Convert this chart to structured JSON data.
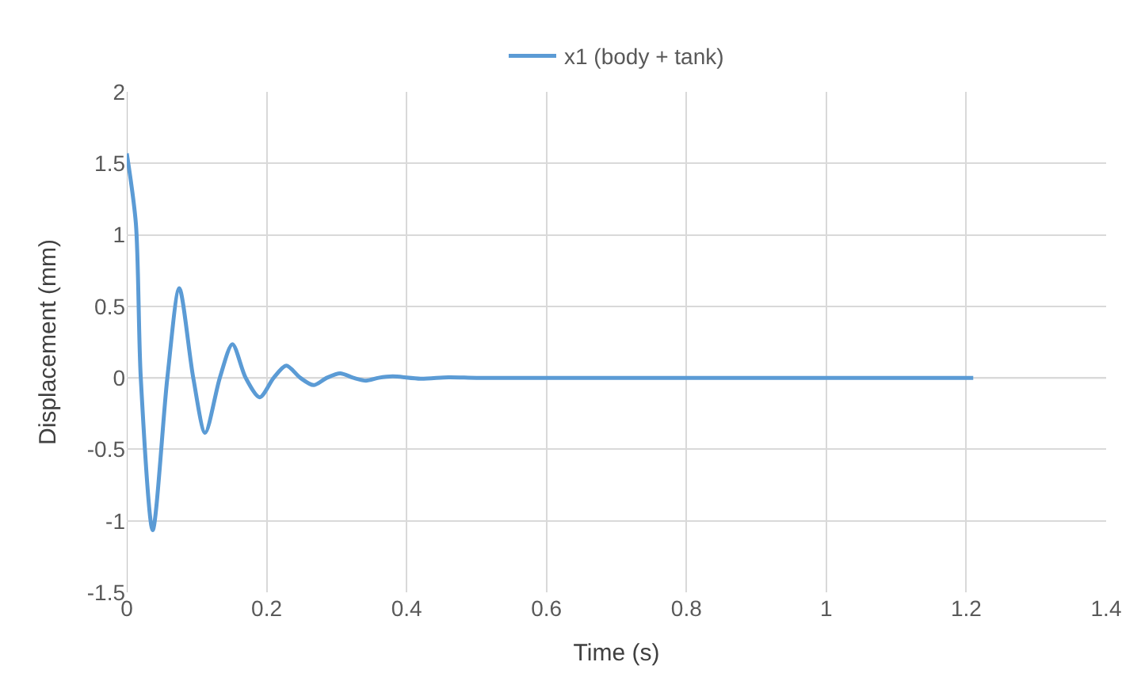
{
  "chart_data": {
    "type": "line",
    "xlabel": "Time (s)",
    "ylabel": "Displacement (mm)",
    "x": [
      0,
      0.013,
      0.02,
      0.037,
      0.058,
      0.075,
      0.095,
      0.112,
      0.133,
      0.151,
      0.17,
      0.19,
      0.21,
      0.228,
      0.248,
      0.267,
      0.286,
      0.305,
      0.324,
      0.342,
      0.36,
      0.38,
      0.42,
      0.46,
      0.5,
      0.6,
      0.8,
      1.0,
      1.21
    ],
    "series": [
      {
        "name": "x1 (body + tank)",
        "color": "#5b9bd5",
        "values": [
          1.57,
          1.08,
          0,
          -1.065,
          0,
          0.626,
          0,
          -0.384,
          0,
          0.235,
          0,
          -0.136,
          0,
          0.085,
          0,
          -0.051,
          0,
          0.031,
          0,
          -0.02,
          0,
          0.01,
          -0.006,
          0.004,
          0,
          0,
          0,
          0,
          0
        ]
      }
    ],
    "xlim": [
      0,
      1.4
    ],
    "xticks": [
      0,
      0.2,
      0.4,
      0.6,
      0.8,
      1,
      1.2,
      1.4
    ],
    "ylim": [
      -1.5,
      2
    ],
    "yticks": [
      -1.5,
      -1,
      -0.5,
      0,
      0.5,
      1,
      1.5,
      2
    ],
    "grid": true,
    "legend": "top",
    "marker": "none",
    "line_style": "solid"
  }
}
